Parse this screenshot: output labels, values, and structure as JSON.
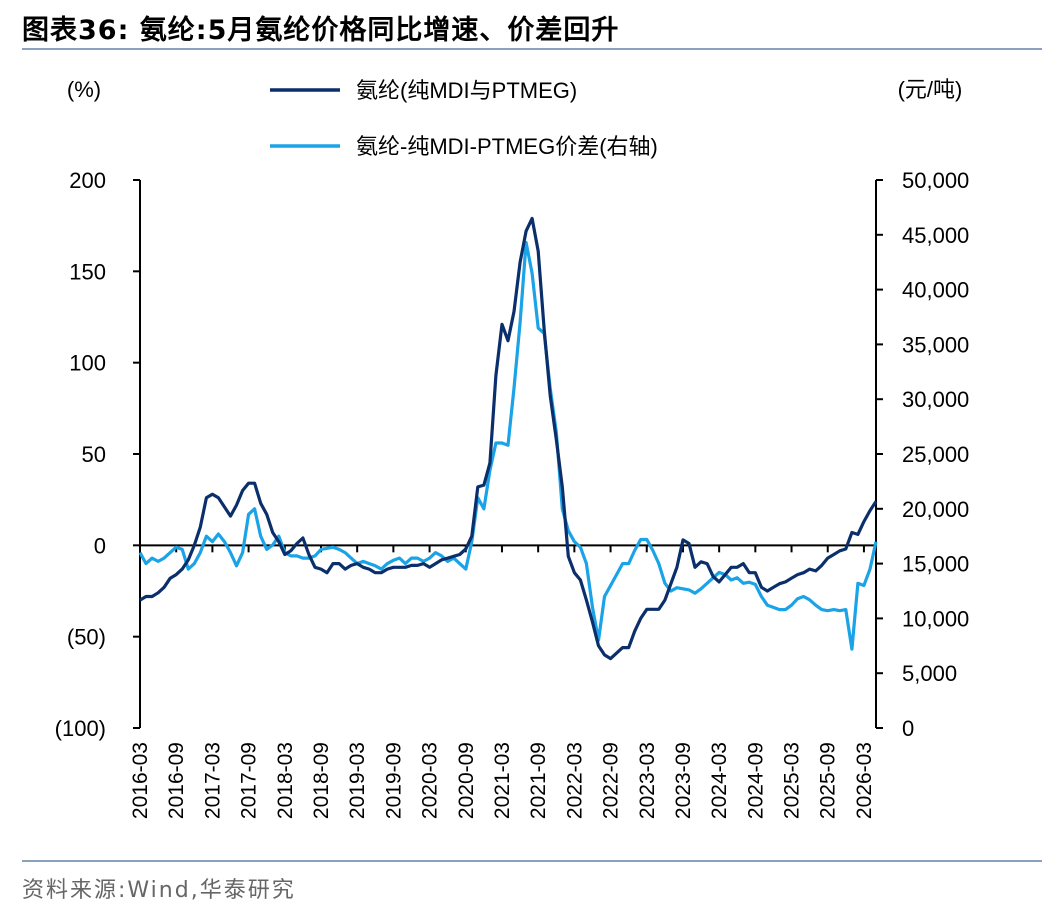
{
  "header": {
    "title": "图表36:  氨纶:5月氨纶价格同比增速、价差回升"
  },
  "footer": {
    "source": "资料来源:Wind,华泰研究"
  },
  "colors": {
    "series1": "#0b2f6b",
    "series2": "#1aa3e6",
    "rule": "#8aa2bd"
  },
  "chart_data": {
    "type": "line",
    "left_axis": {
      "unit": "(%)",
      "range": [
        -100,
        200
      ],
      "ticks": [
        200,
        150,
        100,
        50,
        0,
        -50,
        -100
      ],
      "tick_labels": [
        "200",
        "150",
        "100",
        "50",
        "0",
        "(50)",
        "(100)"
      ]
    },
    "right_axis": {
      "unit": "(元/吨)",
      "range": [
        0,
        50000
      ],
      "ticks": [
        50000,
        45000,
        40000,
        35000,
        30000,
        25000,
        20000,
        15000,
        10000,
        5000,
        0
      ],
      "tick_labels": [
        "50,000",
        "45,000",
        "40,000",
        "35,000",
        "30,000",
        "25,000",
        "20,000",
        "15,000",
        "10,000",
        "5,000",
        "0"
      ]
    },
    "x_tick_labels": [
      "2016-03",
      "2016-09",
      "2017-03",
      "2017-09",
      "2018-03",
      "2018-09",
      "2019-03",
      "2019-09",
      "2020-03",
      "2020-09",
      "2021-03",
      "2021-09",
      "2022-03",
      "2022-09",
      "2023-03",
      "2023-09",
      "2024-03",
      "2024-09",
      "2025-03",
      "2025-09",
      "2026-03"
    ],
    "legend": {
      "placement": "top-center"
    },
    "grid": false,
    "series": [
      {
        "name": "氨纶(纯MDI与PTMEG)",
        "axis": "left",
        "points": [
          [
            "2016-03",
            -30
          ],
          [
            "2016-04",
            -28
          ],
          [
            "2016-05",
            -28
          ],
          [
            "2016-06",
            -26
          ],
          [
            "2016-07",
            -23
          ],
          [
            "2016-08",
            -18
          ],
          [
            "2016-09",
            -16
          ],
          [
            "2016-10",
            -13
          ],
          [
            "2016-11",
            -8
          ],
          [
            "2016-12",
            0
          ],
          [
            "2017-01",
            10
          ],
          [
            "2017-02",
            26
          ],
          [
            "2017-03",
            28
          ],
          [
            "2017-04",
            26
          ],
          [
            "2017-05",
            21
          ],
          [
            "2017-06",
            16
          ],
          [
            "2017-07",
            22
          ],
          [
            "2017-08",
            30
          ],
          [
            "2017-09",
            34
          ],
          [
            "2017-10",
            34
          ],
          [
            "2017-11",
            23
          ],
          [
            "2017-12",
            17
          ],
          [
            "2018-01",
            7
          ],
          [
            "2018-02",
            2
          ],
          [
            "2018-03",
            -5
          ],
          [
            "2018-04",
            -3
          ],
          [
            "2018-05",
            1
          ],
          [
            "2018-06",
            4
          ],
          [
            "2018-07",
            -5
          ],
          [
            "2018-08",
            -12
          ],
          [
            "2018-09",
            -13
          ],
          [
            "2018-10",
            -15
          ],
          [
            "2018-11",
            -10
          ],
          [
            "2018-12",
            -10
          ],
          [
            "2019-01",
            -13
          ],
          [
            "2019-02",
            -11
          ],
          [
            "2019-03",
            -10
          ],
          [
            "2019-04",
            -12
          ],
          [
            "2019-05",
            -13
          ],
          [
            "2019-06",
            -15
          ],
          [
            "2019-07",
            -15
          ],
          [
            "2019-08",
            -13
          ],
          [
            "2019-09",
            -12
          ],
          [
            "2019-10",
            -12
          ],
          [
            "2019-11",
            -12
          ],
          [
            "2019-12",
            -11
          ],
          [
            "2020-01",
            -11
          ],
          [
            "2020-02",
            -10
          ],
          [
            "2020-03",
            -12
          ],
          [
            "2020-04",
            -10
          ],
          [
            "2020-05",
            -8
          ],
          [
            "2020-06",
            -7
          ],
          [
            "2020-07",
            -6
          ],
          [
            "2020-08",
            -5
          ],
          [
            "2020-09",
            -2
          ],
          [
            "2020-10",
            5
          ],
          [
            "2020-11",
            32
          ],
          [
            "2020-12",
            33
          ],
          [
            "2021-01",
            45
          ],
          [
            "2021-02",
            93
          ],
          [
            "2021-03",
            121
          ],
          [
            "2021-04",
            112
          ],
          [
            "2021-05",
            128
          ],
          [
            "2021-06",
            155
          ],
          [
            "2021-07",
            172
          ],
          [
            "2021-08",
            179
          ],
          [
            "2021-09",
            161
          ],
          [
            "2021-10",
            118
          ],
          [
            "2021-11",
            82
          ],
          [
            "2021-12",
            58
          ],
          [
            "2022-01",
            32
          ],
          [
            "2022-02",
            -6
          ],
          [
            "2022-03",
            -15
          ],
          [
            "2022-04",
            -19
          ],
          [
            "2022-05",
            -30
          ],
          [
            "2022-06",
            -42
          ],
          [
            "2022-07",
            -55
          ],
          [
            "2022-08",
            -60
          ],
          [
            "2022-09",
            -62
          ],
          [
            "2022-10",
            -59
          ],
          [
            "2022-11",
            -56
          ],
          [
            "2022-12",
            -56
          ],
          [
            "2023-01",
            -47
          ],
          [
            "2023-02",
            -40
          ],
          [
            "2023-03",
            -35
          ],
          [
            "2023-04",
            -35
          ],
          [
            "2023-05",
            -35
          ],
          [
            "2023-06",
            -30
          ],
          [
            "2023-07",
            -21
          ],
          [
            "2023-08",
            -12
          ],
          [
            "2023-09",
            3
          ],
          [
            "2023-10",
            1
          ],
          [
            "2023-11",
            -12
          ],
          [
            "2023-12",
            -9
          ],
          [
            "2024-01",
            -10
          ],
          [
            "2024-02",
            -17
          ],
          [
            "2024-03",
            -20
          ],
          [
            "2024-04",
            -16
          ],
          [
            "2024-05",
            -12
          ],
          [
            "2024-06",
            -12
          ],
          [
            "2024-07",
            -10
          ],
          [
            "2024-08",
            -15
          ],
          [
            "2024-09",
            -15
          ],
          [
            "2024-10",
            -23
          ],
          [
            "2024-11",
            -25
          ],
          [
            "2024-12",
            -23
          ],
          [
            "2025-01",
            -21
          ],
          [
            "2025-02",
            -20
          ],
          [
            "2025-03",
            -18
          ],
          [
            "2025-04",
            -16
          ],
          [
            "2025-05",
            -15
          ],
          [
            "2025-06",
            -13
          ],
          [
            "2025-07",
            -14
          ],
          [
            "2025-08",
            -11
          ],
          [
            "2025-09",
            -7
          ],
          [
            "2025-10",
            -5
          ],
          [
            "2025-11",
            -3
          ],
          [
            "2025-12",
            -2
          ],
          [
            "2026-01",
            7
          ],
          [
            "2026-02",
            6
          ],
          [
            "2026-03",
            13
          ],
          [
            "2026-04",
            19
          ],
          [
            "2026-05",
            24
          ]
        ]
      },
      {
        "name": "氨纶-纯MDI-PTMEG价差(右轴)",
        "axis": "right",
        "points": [
          [
            "2016-03",
            16000
          ],
          [
            "2016-04",
            15000
          ],
          [
            "2016-05",
            15500
          ],
          [
            "2016-06",
            15200
          ],
          [
            "2016-07",
            15500
          ],
          [
            "2016-08",
            16000
          ],
          [
            "2016-09",
            16500
          ],
          [
            "2016-10",
            16300
          ],
          [
            "2016-11",
            14500
          ],
          [
            "2016-12",
            15000
          ],
          [
            "2017-01",
            16000
          ],
          [
            "2017-02",
            17500
          ],
          [
            "2017-03",
            17000
          ],
          [
            "2017-04",
            17700
          ],
          [
            "2017-05",
            17000
          ],
          [
            "2017-06",
            16000
          ],
          [
            "2017-07",
            14800
          ],
          [
            "2017-08",
            16000
          ],
          [
            "2017-09",
            19500
          ],
          [
            "2017-10",
            20000
          ],
          [
            "2017-11",
            17500
          ],
          [
            "2017-12",
            16300
          ],
          [
            "2018-01",
            16700
          ],
          [
            "2018-02",
            17500
          ],
          [
            "2018-03",
            16000
          ],
          [
            "2018-04",
            15700
          ],
          [
            "2018-05",
            15700
          ],
          [
            "2018-06",
            15500
          ],
          [
            "2018-07",
            15500
          ],
          [
            "2018-08",
            15700
          ],
          [
            "2018-09",
            16300
          ],
          [
            "2018-10",
            16400
          ],
          [
            "2018-11",
            16500
          ],
          [
            "2018-12",
            16300
          ],
          [
            "2019-01",
            16000
          ],
          [
            "2019-02",
            15500
          ],
          [
            "2019-03",
            15000
          ],
          [
            "2019-04",
            15200
          ],
          [
            "2019-05",
            15000
          ],
          [
            "2019-06",
            14800
          ],
          [
            "2019-07",
            14500
          ],
          [
            "2019-08",
            15000
          ],
          [
            "2019-09",
            15300
          ],
          [
            "2019-10",
            15500
          ],
          [
            "2019-11",
            15000
          ],
          [
            "2019-12",
            15500
          ],
          [
            "2020-01",
            15500
          ],
          [
            "2020-02",
            15200
          ],
          [
            "2020-03",
            15500
          ],
          [
            "2020-04",
            16000
          ],
          [
            "2020-05",
            15700
          ],
          [
            "2020-06",
            15200
          ],
          [
            "2020-07",
            15500
          ],
          [
            "2020-08",
            15000
          ],
          [
            "2020-09",
            14500
          ],
          [
            "2020-10",
            17000
          ],
          [
            "2020-11",
            21000
          ],
          [
            "2020-12",
            20000
          ],
          [
            "2021-01",
            23500
          ],
          [
            "2021-02",
            26000
          ],
          [
            "2021-03",
            26000
          ],
          [
            "2021-04",
            25800
          ],
          [
            "2021-05",
            31000
          ],
          [
            "2021-06",
            37000
          ],
          [
            "2021-07",
            44300
          ],
          [
            "2021-08",
            41500
          ],
          [
            "2021-09",
            36500
          ],
          [
            "2021-10",
            36000
          ],
          [
            "2021-11",
            31000
          ],
          [
            "2021-12",
            27000
          ],
          [
            "2022-01",
            20000
          ],
          [
            "2022-02",
            18000
          ],
          [
            "2022-03",
            17000
          ],
          [
            "2022-04",
            16500
          ],
          [
            "2022-05",
            15000
          ],
          [
            "2022-06",
            11000
          ],
          [
            "2022-07",
            8000
          ],
          [
            "2022-08",
            12000
          ],
          [
            "2022-09",
            13000
          ],
          [
            "2022-10",
            14000
          ],
          [
            "2022-11",
            15000
          ],
          [
            "2022-12",
            15000
          ],
          [
            "2023-01",
            16200
          ],
          [
            "2023-02",
            17200
          ],
          [
            "2023-03",
            17200
          ],
          [
            "2023-04",
            16200
          ],
          [
            "2023-05",
            15000
          ],
          [
            "2023-06",
            13200
          ],
          [
            "2023-07",
            12500
          ],
          [
            "2023-08",
            12800
          ],
          [
            "2023-09",
            12700
          ],
          [
            "2023-10",
            12600
          ],
          [
            "2023-11",
            12300
          ],
          [
            "2023-12",
            12700
          ],
          [
            "2024-01",
            13200
          ],
          [
            "2024-02",
            13700
          ],
          [
            "2024-03",
            14200
          ],
          [
            "2024-04",
            14000
          ],
          [
            "2024-05",
            13500
          ],
          [
            "2024-06",
            13700
          ],
          [
            "2024-07",
            13200
          ],
          [
            "2024-08",
            13300
          ],
          [
            "2024-09",
            13100
          ],
          [
            "2024-10",
            12000
          ],
          [
            "2024-11",
            11200
          ],
          [
            "2024-12",
            11000
          ],
          [
            "2025-01",
            10800
          ],
          [
            "2025-02",
            10800
          ],
          [
            "2025-03",
            11200
          ],
          [
            "2025-04",
            11800
          ],
          [
            "2025-05",
            12000
          ],
          [
            "2025-06",
            11700
          ],
          [
            "2025-07",
            11200
          ],
          [
            "2025-08",
            10800
          ],
          [
            "2025-09",
            10700
          ],
          [
            "2025-10",
            10800
          ],
          [
            "2025-11",
            10700
          ],
          [
            "2025-12",
            10800
          ],
          [
            "2026-01",
            7200
          ],
          [
            "2026-02",
            13200
          ],
          [
            "2026-03",
            13000
          ],
          [
            "2026-04",
            14500
          ],
          [
            "2026-05",
            17000
          ]
        ]
      }
    ]
  }
}
